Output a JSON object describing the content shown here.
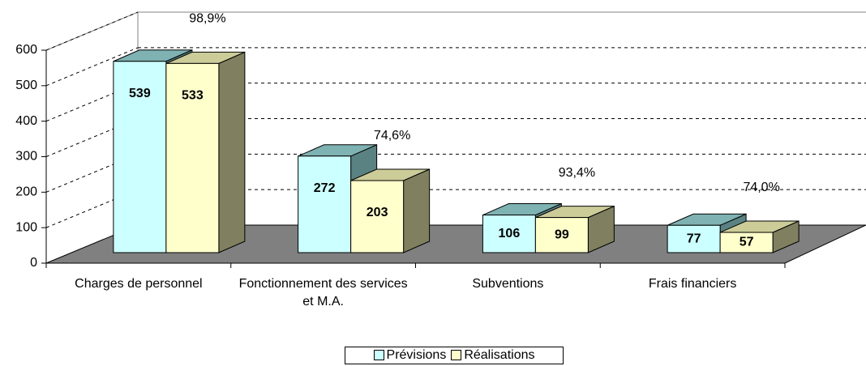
{
  "chart_data": {
    "type": "bar3d",
    "categories": [
      "Charges de personnel",
      "Fonctionnement des services et M.A.",
      "Subventions",
      "Frais financiers"
    ],
    "series": [
      {
        "name": "Prévisions",
        "color": "#ccffff",
        "top_color": "#7fb2b2",
        "side_color": "#5a8282",
        "values": [
          539,
          272,
          106,
          77
        ]
      },
      {
        "name": "Réalisations",
        "color": "#ffffcc",
        "top_color": "#cccc99",
        "side_color": "#808060",
        "values": [
          533,
          203,
          99,
          57
        ]
      }
    ],
    "annotations": [
      "98,9%",
      "74,6%",
      "93,4%",
      "74,0%"
    ],
    "ylim": [
      0,
      600
    ],
    "yticks": [
      0,
      100,
      200,
      300,
      400,
      500,
      600
    ],
    "grid": true,
    "legend": "bottom"
  }
}
